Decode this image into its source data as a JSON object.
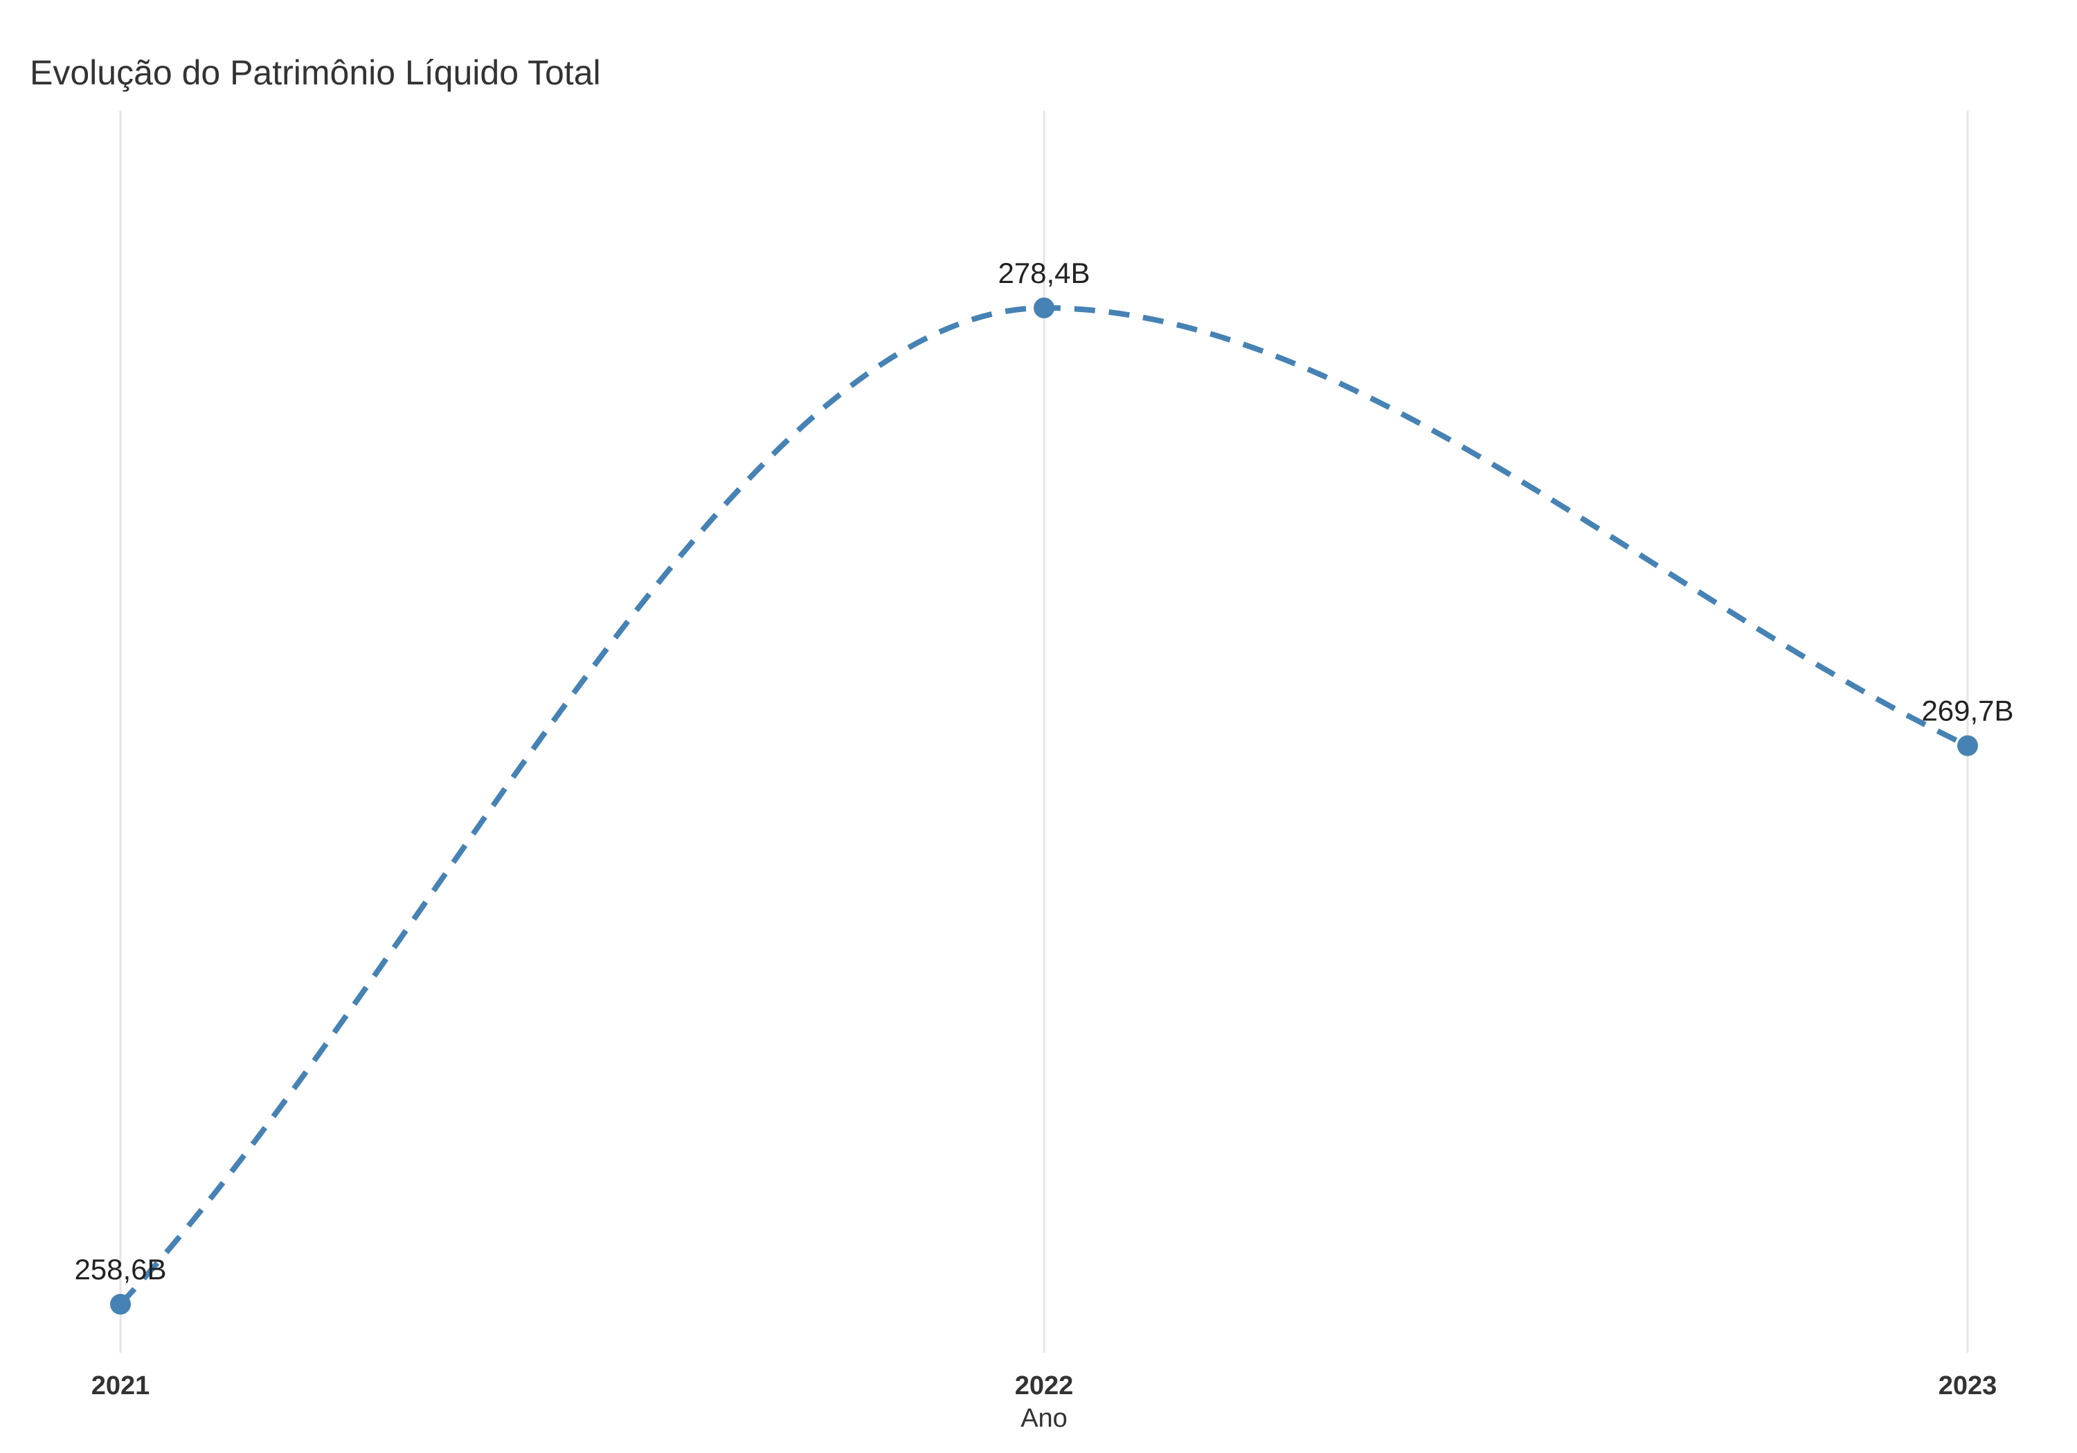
{
  "chart_data": {
    "type": "line",
    "title": "Evolução do Patrimônio Líquido Total",
    "xlabel": "Ano",
    "ylabel": "",
    "categories": [
      "2021",
      "2022",
      "2023"
    ],
    "series": [
      {
        "values": [
          258.6,
          278.4,
          269.7
        ],
        "labels": [
          "258,6B",
          "278,4B",
          "269,7B"
        ]
      }
    ],
    "line_style": "dashed",
    "curve": "smooth",
    "markers": true,
    "grid": "vertical-only",
    "legend": "none",
    "colors": {
      "series": "#4682b4",
      "text": "#333333",
      "grid": "#e5e5e5"
    }
  }
}
